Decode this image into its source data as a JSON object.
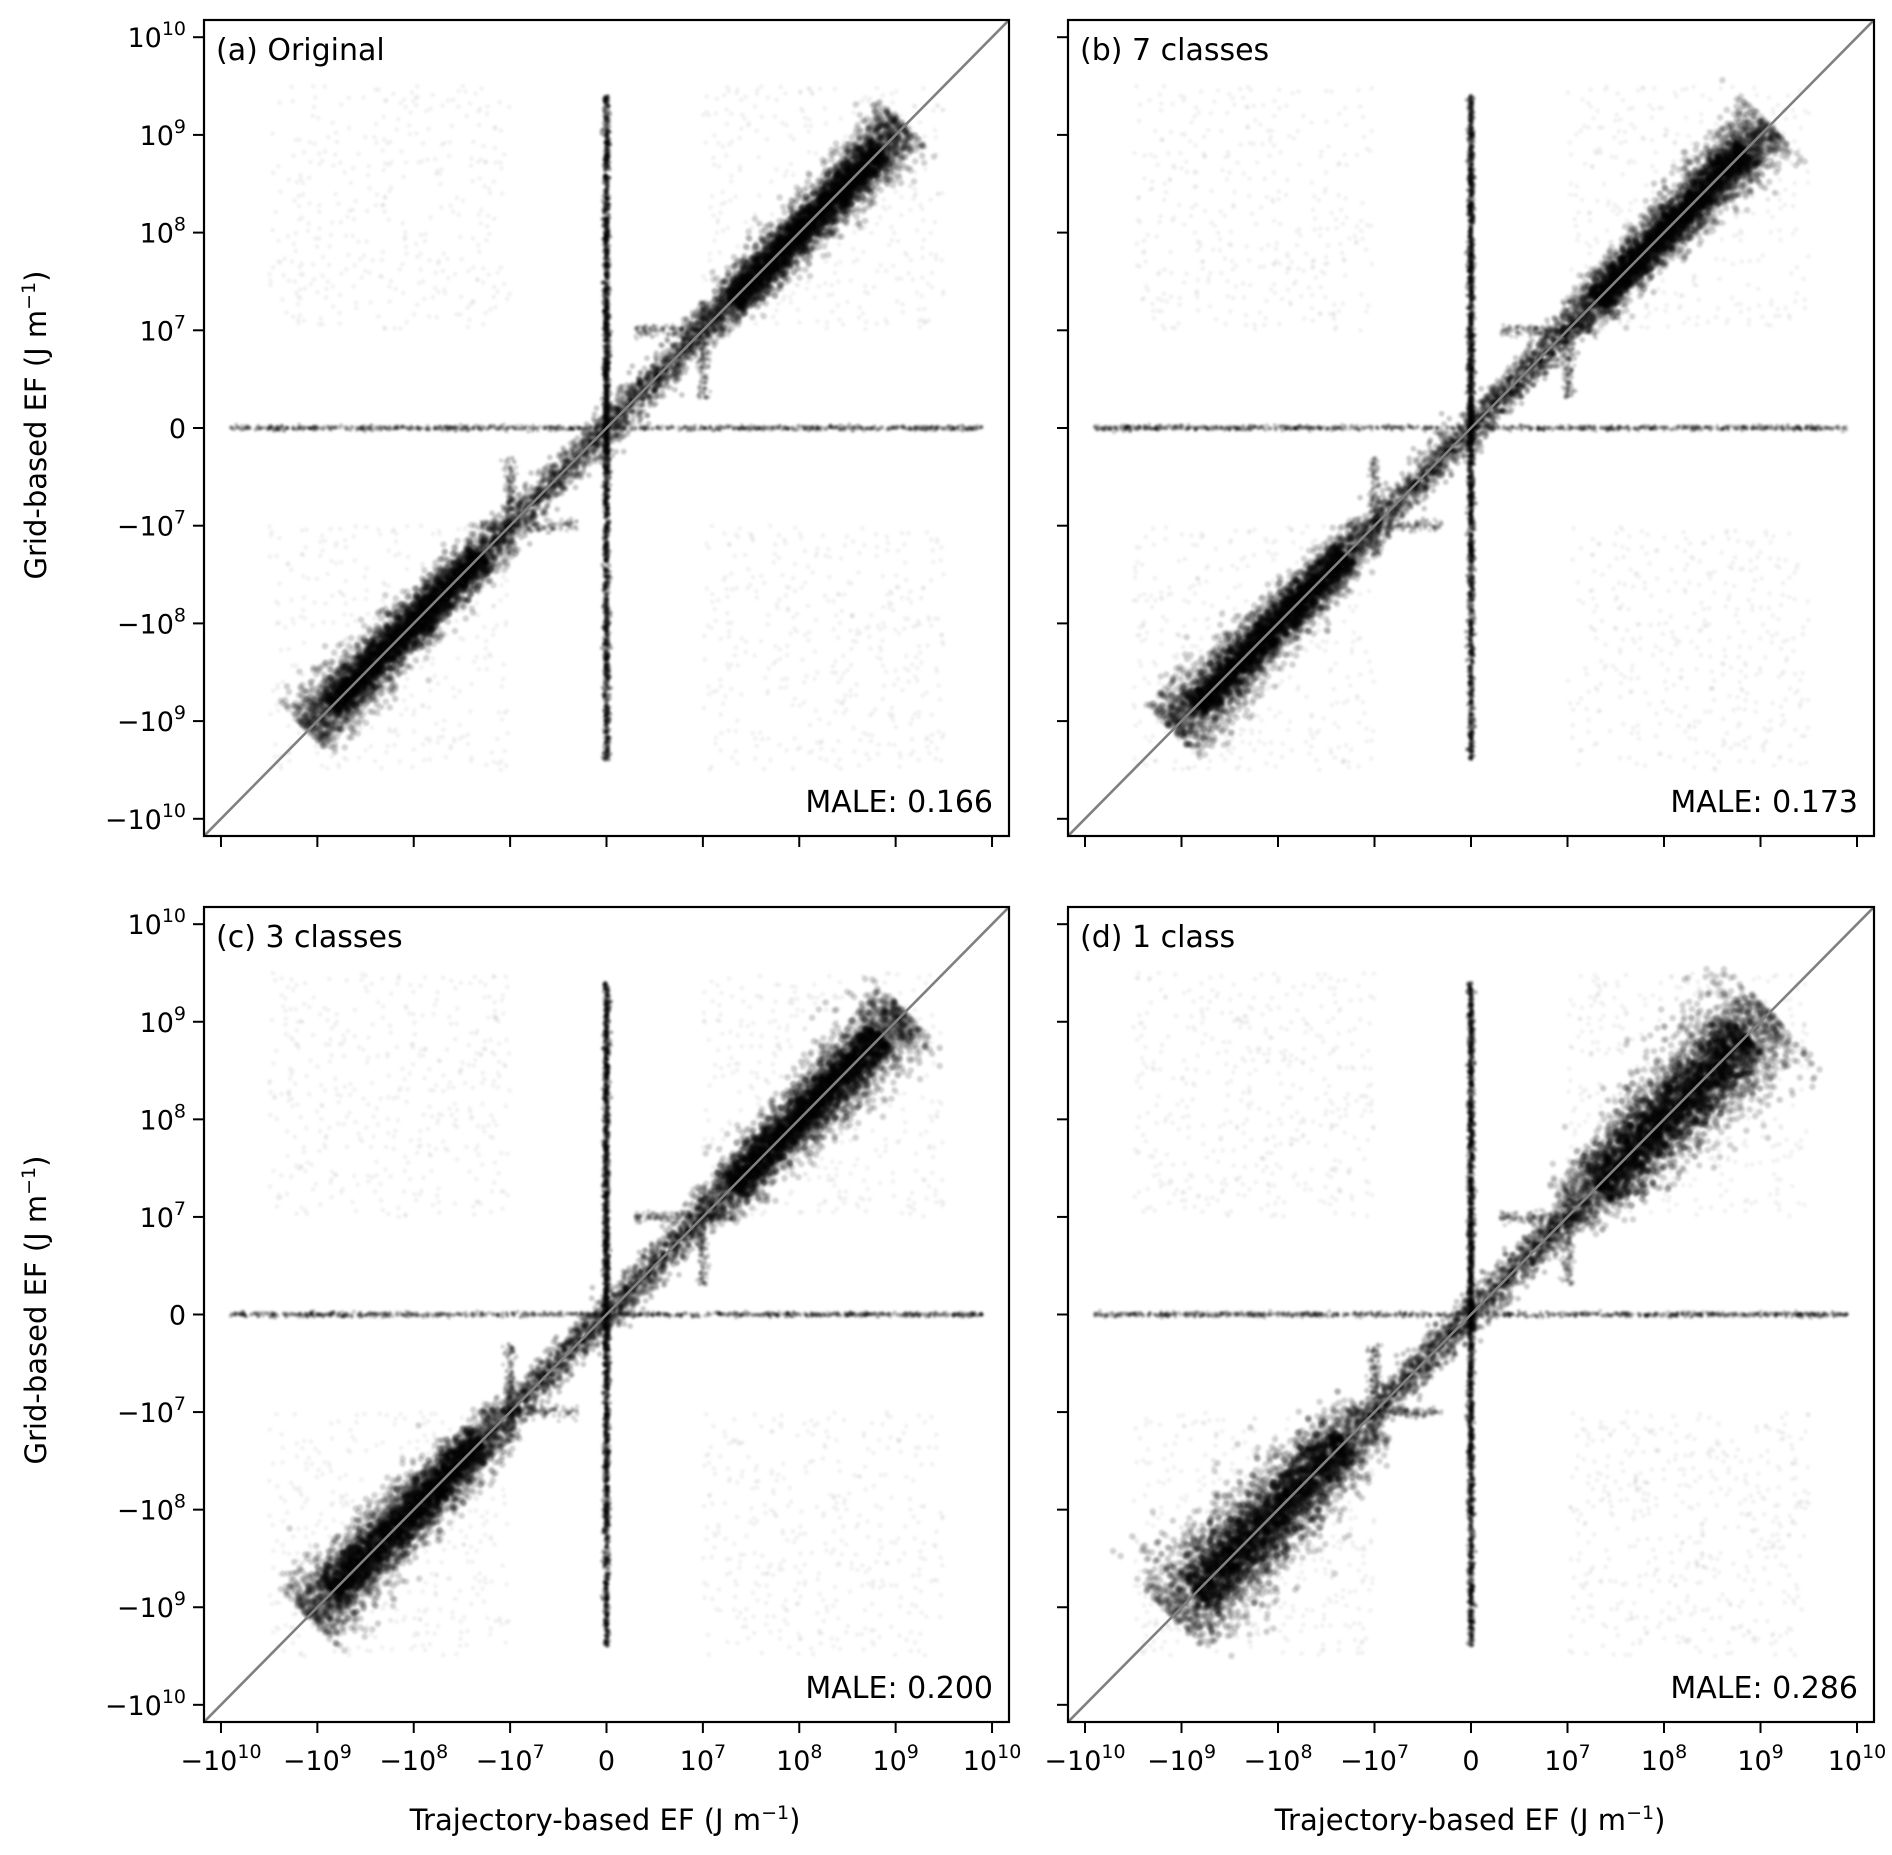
{
  "figure": {
    "xlabel": "Trajectory-based EF (J m",
    "ylabel": "Grid-based EF (J m",
    "unit_exponent": "−1",
    "unit_close": ")"
  },
  "chart_data": [
    {
      "type": "scatter",
      "title": "(a) Original",
      "annotation": "MALE: 0.166",
      "axis_scale": "symlog",
      "linear_threshold": 10000000,
      "xlim": [
        -15000000000,
        15000000000
      ],
      "ylim": [
        -15000000000,
        15000000000
      ],
      "reference_line": "y = x",
      "x_ticks_labeled": false,
      "y_ticks_labeled": true,
      "point_color": "#000000",
      "reference_color": "#808080",
      "spread": 0.16
    },
    {
      "type": "scatter",
      "title": "(b) 7 classes",
      "annotation": "MALE: 0.173",
      "axis_scale": "symlog",
      "linear_threshold": 10000000,
      "xlim": [
        -15000000000,
        15000000000
      ],
      "ylim": [
        -15000000000,
        15000000000
      ],
      "reference_line": "y = x",
      "x_ticks_labeled": false,
      "y_ticks_labeled": false,
      "point_color": "#000000",
      "reference_color": "#808080",
      "spread": 0.17
    },
    {
      "type": "scatter",
      "title": "(c) 3 classes",
      "annotation": "MALE: 0.200",
      "axis_scale": "symlog",
      "linear_threshold": 10000000,
      "xlim": [
        -15000000000,
        15000000000
      ],
      "ylim": [
        -15000000000,
        15000000000
      ],
      "reference_line": "y = x",
      "x_ticks_labeled": true,
      "y_ticks_labeled": true,
      "point_color": "#000000",
      "reference_color": "#808080",
      "spread": 0.2
    },
    {
      "type": "scatter",
      "title": "(d) 1 class",
      "annotation": "MALE: 0.286",
      "axis_scale": "symlog",
      "linear_threshold": 10000000,
      "xlim": [
        -15000000000,
        15000000000
      ],
      "ylim": [
        -15000000000,
        15000000000
      ],
      "reference_line": "y = x",
      "x_ticks_labeled": true,
      "y_ticks_labeled": false,
      "point_color": "#000000",
      "reference_color": "#808080",
      "spread": 0.29
    }
  ],
  "ticks": [
    {
      "value": -10000000000,
      "base": "−10",
      "exp": "10"
    },
    {
      "value": -1000000000,
      "base": "−10",
      "exp": "9"
    },
    {
      "value": -100000000,
      "base": "−10",
      "exp": "8"
    },
    {
      "value": -10000000,
      "base": "−10",
      "exp": "7"
    },
    {
      "value": 0,
      "base": "0",
      "exp": ""
    },
    {
      "value": 10000000,
      "base": "10",
      "exp": "7"
    },
    {
      "value": 100000000,
      "base": "10",
      "exp": "8"
    },
    {
      "value": 1000000000,
      "base": "10",
      "exp": "9"
    },
    {
      "value": 10000000000,
      "base": "10",
      "exp": "10"
    }
  ]
}
